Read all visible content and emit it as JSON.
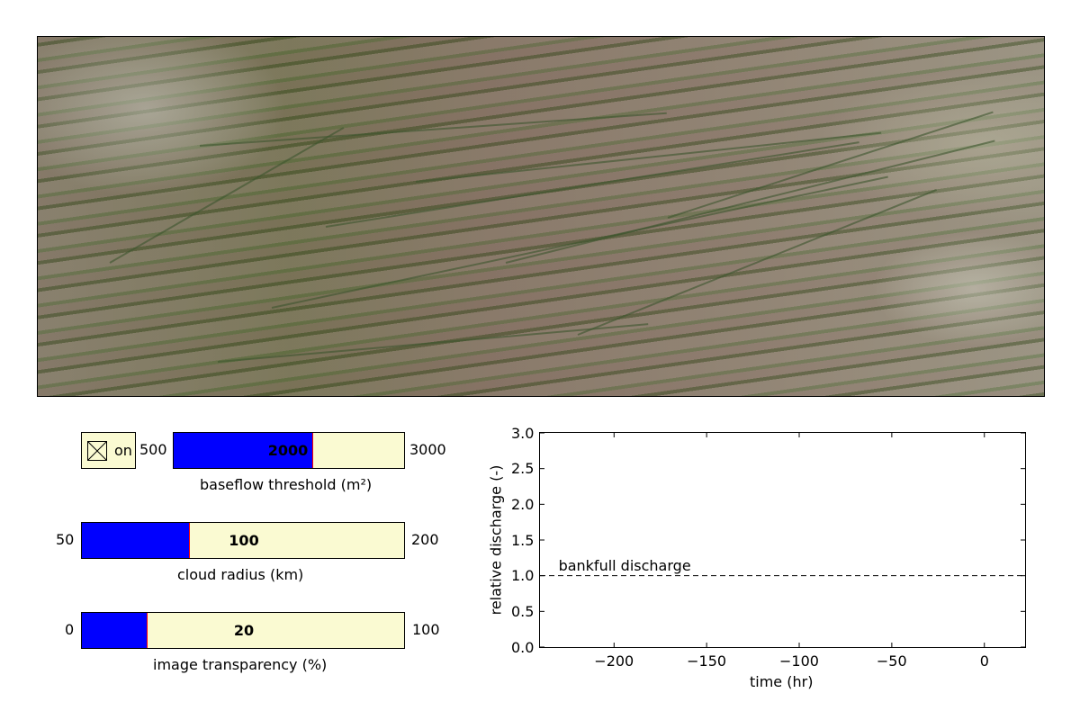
{
  "checkbox": {
    "label": "on",
    "checked": true
  },
  "sliders": [
    {
      "id": "baseflow",
      "label": "baseflow threshold (m²)",
      "min_label": "500",
      "max_label": "3000",
      "min": 500,
      "max": 3000,
      "value": 2000,
      "value_label": "2000"
    },
    {
      "id": "cloud",
      "label": "cloud radius (km)",
      "min_label": "50",
      "max_label": "200",
      "min": 50,
      "max": 200,
      "value": 100,
      "value_label": "100"
    },
    {
      "id": "transparency",
      "label": "image transparency (%)",
      "min_label": "0",
      "max_label": "100",
      "min": 0,
      "max": 100,
      "value": 20,
      "value_label": "20"
    }
  ],
  "colors": {
    "slider_fill": "#0000ff",
    "slider_track": "#fafad2",
    "slider_handle": "#ff0000"
  },
  "chart_data": {
    "type": "line",
    "title": "",
    "xlabel": "time (hr)",
    "ylabel": "relative discharge (-)",
    "xlim": [
      -240,
      22
    ],
    "ylim": [
      0,
      3
    ],
    "xticks": [
      -200,
      -150,
      -100,
      -50,
      0
    ],
    "xtick_labels": [
      "−200",
      "−150",
      "−100",
      "−50",
      "0"
    ],
    "yticks": [
      0.0,
      0.5,
      1.0,
      1.5,
      2.0,
      2.5,
      3.0
    ],
    "ytick_labels": [
      "0.0",
      "0.5",
      "1.0",
      "1.5",
      "2.0",
      "2.5",
      "3.0"
    ],
    "series": [
      {
        "style": "dashed",
        "color": "#000000",
        "x": [
          -240,
          22
        ],
        "y": [
          1.0,
          1.0
        ]
      }
    ],
    "annotations": [
      {
        "text": "bankfull discharge",
        "x": -230,
        "y": 1.07
      }
    ],
    "grid": false
  }
}
